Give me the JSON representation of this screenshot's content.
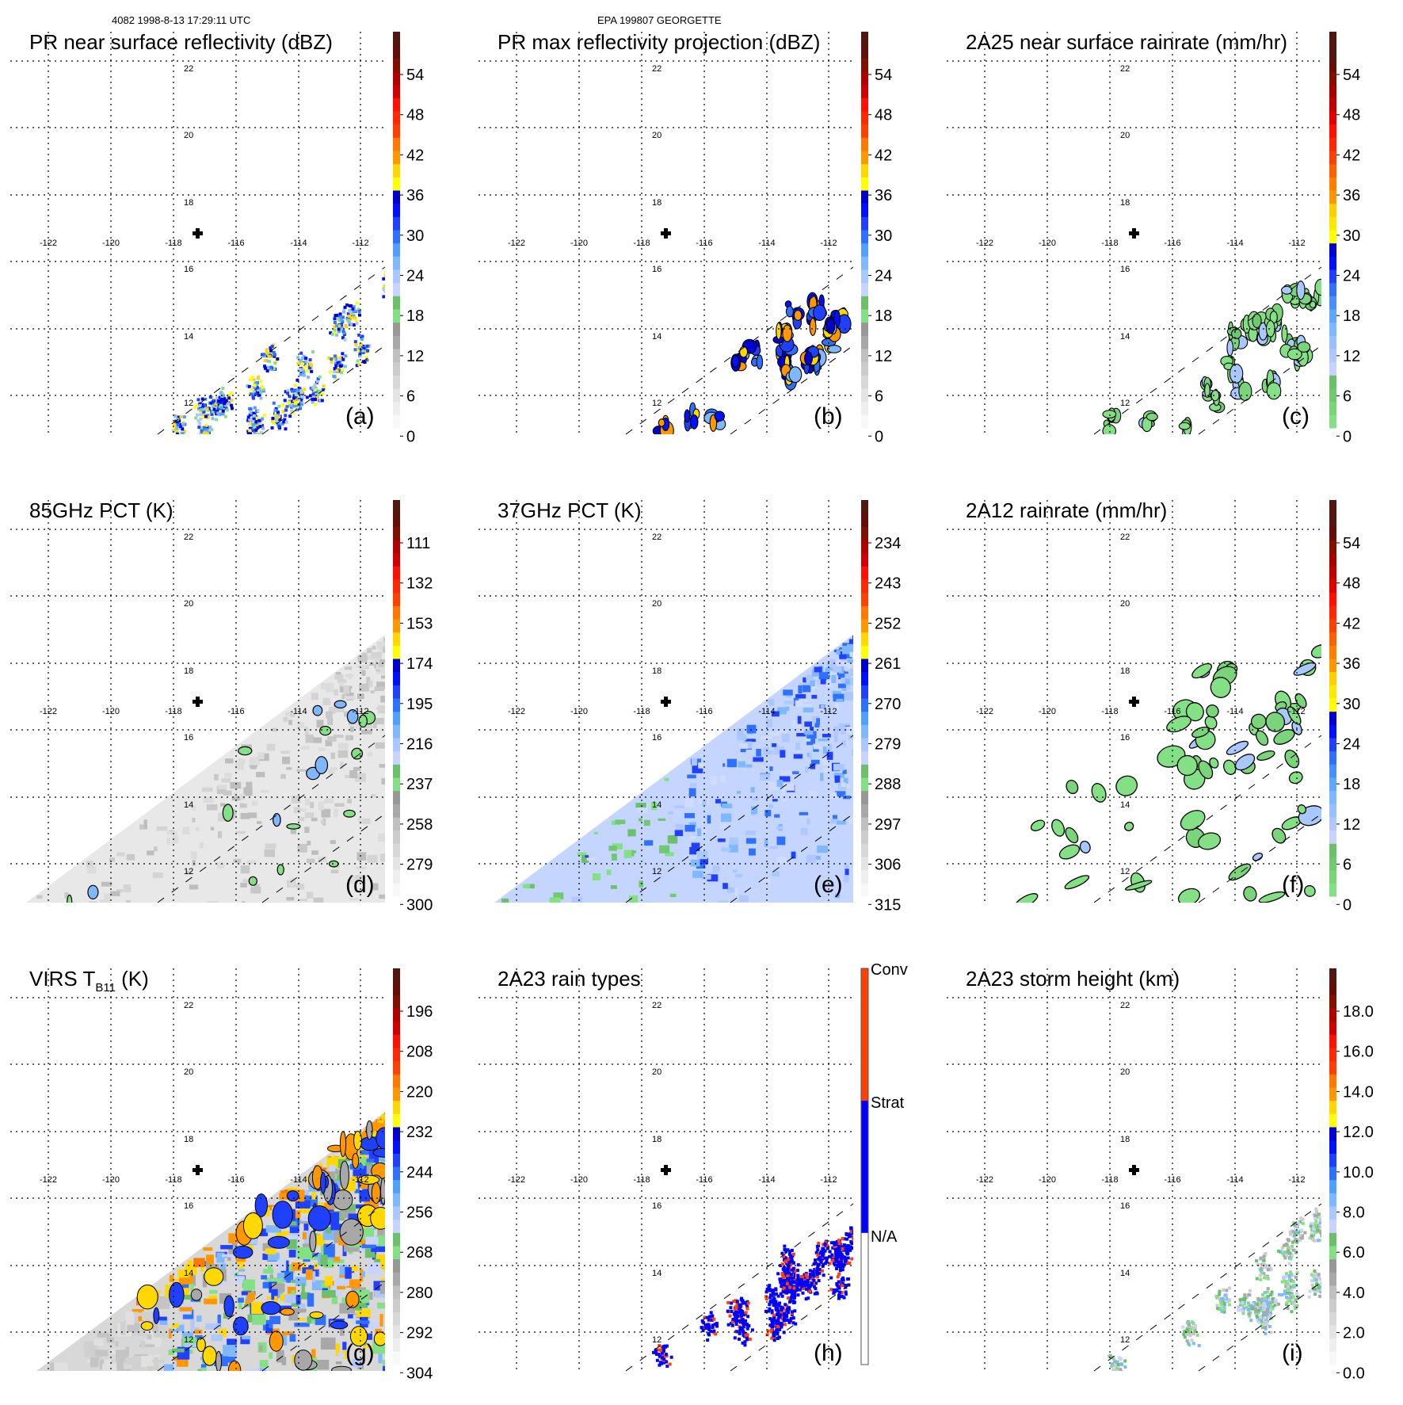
{
  "header": {
    "left": "4082 1998-8-13 17:29:11 UTC",
    "center": "EPA 199807 GEORGETTE"
  },
  "axes": {
    "lon_labels": [
      "-122",
      "-120",
      "-118",
      "-116",
      "-114",
      "-112"
    ],
    "lat_labels": [
      "22",
      "20",
      "18",
      "16",
      "14",
      "12"
    ]
  },
  "palettes": {
    "gray_base": [
      "#f8f8f8",
      "#eeeeee",
      "#e4e4e4",
      "#d8d8d8",
      "#cccccc",
      "#c0c0c0",
      "#a8a8a8",
      "#989898",
      "#84e084",
      "#6cc06c",
      "#c8d4ff",
      "#a8c8ff",
      "#80b8ff",
      "#50a0ff",
      "#3070ff",
      "#2040ff",
      "#0010ff",
      "#0000d0",
      "#ffff00",
      "#ffd800",
      "#ff9800",
      "#ff7800",
      "#ff4000",
      "#ff2800",
      "#ff1000",
      "#d00000",
      "#b00000",
      "#801000",
      "#601008",
      "#501810"
    ],
    "green_base": [
      "#84e084",
      "#7ad47a",
      "#70c870",
      "#6cc06c",
      "#c8d4ff",
      "#b0c8ff",
      "#98c0ff",
      "#80b8ff",
      "#60a8ff",
      "#4890ff",
      "#3070ff",
      "#2040ff",
      "#0010ff",
      "#0000d0",
      "#ffff00",
      "#ffe800",
      "#ffd000",
      "#ff9800",
      "#ff8000",
      "#ff6000",
      "#ff4000",
      "#ff2800",
      "#ff1000",
      "#e00000",
      "#c00000",
      "#a80000",
      "#801000",
      "#601008",
      "#501810",
      "#501810"
    ],
    "rain_types": [
      "#ffffff",
      "#0000ff",
      "#ff4000"
    ]
  },
  "panels": [
    {
      "id": "a",
      "title": "PR near surface reflectivity (dBZ)",
      "letter": "(a)",
      "palette": "gray_base",
      "colorbar_labels": [
        "54",
        "48",
        "42",
        "36",
        "30",
        "24",
        "18",
        "12",
        "6",
        "0"
      ]
    },
    {
      "id": "b",
      "title": "PR max reflectivity projection (dBZ)",
      "letter": "(b)",
      "palette": "gray_base",
      "colorbar_labels": [
        "54",
        "48",
        "42",
        "36",
        "30",
        "24",
        "18",
        "12",
        "6",
        "0"
      ]
    },
    {
      "id": "c",
      "title": "2A25 near surface rainrate (mm/hr)",
      "letter": "(c)",
      "palette": "green_base",
      "colorbar_labels": [
        "54",
        "48",
        "42",
        "36",
        "30",
        "24",
        "18",
        "12",
        "6",
        "0"
      ]
    },
    {
      "id": "d",
      "title": "85GHz PCT (K)",
      "letter": "(d)",
      "palette": "gray_base",
      "colorbar_labels": [
        "111",
        "132",
        "153",
        "174",
        "195",
        "216",
        "237",
        "258",
        "279",
        "300"
      ]
    },
    {
      "id": "e",
      "title": "37GHz PCT (K)",
      "letter": "(e)",
      "palette": "gray_base",
      "colorbar_labels": [
        "234",
        "243",
        "252",
        "261",
        "270",
        "279",
        "288",
        "297",
        "306",
        "315"
      ]
    },
    {
      "id": "f",
      "title": "2A12 rainrate (mm/hr)",
      "letter": "(f)",
      "palette": "green_base",
      "colorbar_labels": [
        "54",
        "48",
        "42",
        "36",
        "30",
        "24",
        "18",
        "12",
        "6",
        "0"
      ]
    },
    {
      "id": "g",
      "title": "VIRS T",
      "title_sub": "B11",
      "title_tail": " (K)",
      "letter": "(g)",
      "palette": "gray_base",
      "colorbar_labels": [
        "196",
        "208",
        "220",
        "232",
        "244",
        "256",
        "268",
        "280",
        "292",
        "304"
      ]
    },
    {
      "id": "h",
      "title": "2A23 rain types",
      "letter": "(h)",
      "palette": "rain_types",
      "colorbar_labels": [
        "Conv",
        "Strat",
        "N/A"
      ]
    },
    {
      "id": "i",
      "title": "2A23 storm height (km)",
      "letter": "(i)",
      "palette": "gray_base",
      "colorbar_labels": [
        "18.0",
        "16.0",
        "14.0",
        "12.0",
        "10.0",
        "8.0",
        "6.0",
        "4.0",
        "2.0",
        "0.0"
      ]
    }
  ]
}
